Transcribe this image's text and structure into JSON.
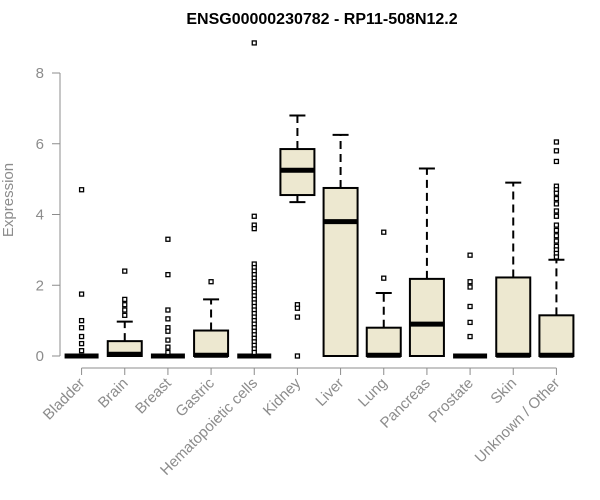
{
  "chart_data": {
    "type": "box",
    "title": "ENSG00000230782 - RP11-508N12.2",
    "ylabel": "Expression",
    "xlabel": "",
    "ylim": [
      0,
      9
    ],
    "yticks": [
      0,
      2,
      4,
      6,
      8
    ],
    "grid": false,
    "colors": {
      "box_fill": "#ede8d0",
      "stroke": "#000000",
      "axis": "#8c8c8c"
    },
    "categories": [
      "Bladder",
      "Brain",
      "Breast",
      "Gastric",
      "Hematopoietic cells",
      "Kidney",
      "Liver",
      "Lung",
      "Pancreas",
      "Prostate",
      "Skin",
      "Unknown / Other"
    ],
    "boxes": [
      {
        "category": "Bladder",
        "q1": 0,
        "median": 0,
        "q3": 0,
        "whisker_low": 0,
        "whisker_high": 0,
        "outliers": [
          4.7,
          1.75,
          1.0,
          0.8,
          0.55,
          0.35,
          0.15
        ]
      },
      {
        "category": "Brain",
        "q1": 0,
        "median": 0.05,
        "q3": 0.42,
        "whisker_low": 0,
        "whisker_high": 0.97,
        "outliers": [
          2.4,
          1.6,
          1.45,
          1.3,
          1.15
        ]
      },
      {
        "category": "Breast",
        "q1": 0,
        "median": 0,
        "q3": 0,
        "whisker_low": 0,
        "whisker_high": 0,
        "outliers": [
          3.3,
          2.3,
          1.3,
          1.05,
          0.8,
          0.7,
          0.45,
          0.25,
          0.1
        ]
      },
      {
        "category": "Gastric",
        "q1": 0,
        "median": 0.02,
        "q3": 0.72,
        "whisker_low": 0,
        "whisker_high": 1.6,
        "outliers": [
          2.1
        ]
      },
      {
        "category": "Hematopoietic cells",
        "q1": 0,
        "median": 0,
        "q3": 0,
        "whisker_low": 0,
        "whisker_high": 0,
        "outliers": [
          8.85,
          3.95,
          3.7,
          3.6,
          2.6,
          2.5,
          2.4,
          2.3,
          2.2,
          2.1,
          2.0,
          1.9,
          1.8,
          1.7,
          1.6,
          1.5,
          1.4,
          1.3,
          1.2,
          1.1,
          1.0,
          0.9,
          0.8,
          0.7,
          0.6,
          0.5,
          0.4,
          0.3,
          0.2,
          0.1
        ]
      },
      {
        "category": "Kidney",
        "q1": 4.55,
        "median": 5.25,
        "q3": 5.85,
        "whisker_low": 4.35,
        "whisker_high": 6.8,
        "outliers": [
          1.45,
          1.35,
          1.1,
          0.0
        ]
      },
      {
        "category": "Liver",
        "q1": 0,
        "median": 3.8,
        "q3": 4.75,
        "whisker_low": 0,
        "whisker_high": 6.25,
        "outliers": []
      },
      {
        "category": "Lung",
        "q1": 0,
        "median": 0.02,
        "q3": 0.8,
        "whisker_low": 0,
        "whisker_high": 1.78,
        "outliers": [
          3.5,
          2.2
        ]
      },
      {
        "category": "Pancreas",
        "q1": 0,
        "median": 0.9,
        "q3": 2.18,
        "whisker_low": 0,
        "whisker_high": 5.3,
        "outliers": []
      },
      {
        "category": "Prostate",
        "q1": 0,
        "median": 0,
        "q3": 0,
        "whisker_low": 0,
        "whisker_high": 0,
        "outliers": [
          2.85,
          2.1,
          1.95,
          1.4,
          0.95,
          0.55
        ]
      },
      {
        "category": "Skin",
        "q1": 0,
        "median": 0.02,
        "q3": 2.22,
        "whisker_low": 0,
        "whisker_high": 4.9,
        "outliers": []
      },
      {
        "category": "Unknown / Other",
        "q1": 0,
        "median": 0.02,
        "q3": 1.15,
        "whisker_low": 0,
        "whisker_high": 2.72,
        "outliers": [
          6.05,
          5.8,
          5.5,
          4.8,
          4.7,
          4.6,
          4.45,
          4.3,
          4.1,
          3.95,
          3.7,
          3.55,
          3.4,
          3.25,
          3.1,
          3.0,
          2.9,
          2.8
        ]
      }
    ]
  }
}
